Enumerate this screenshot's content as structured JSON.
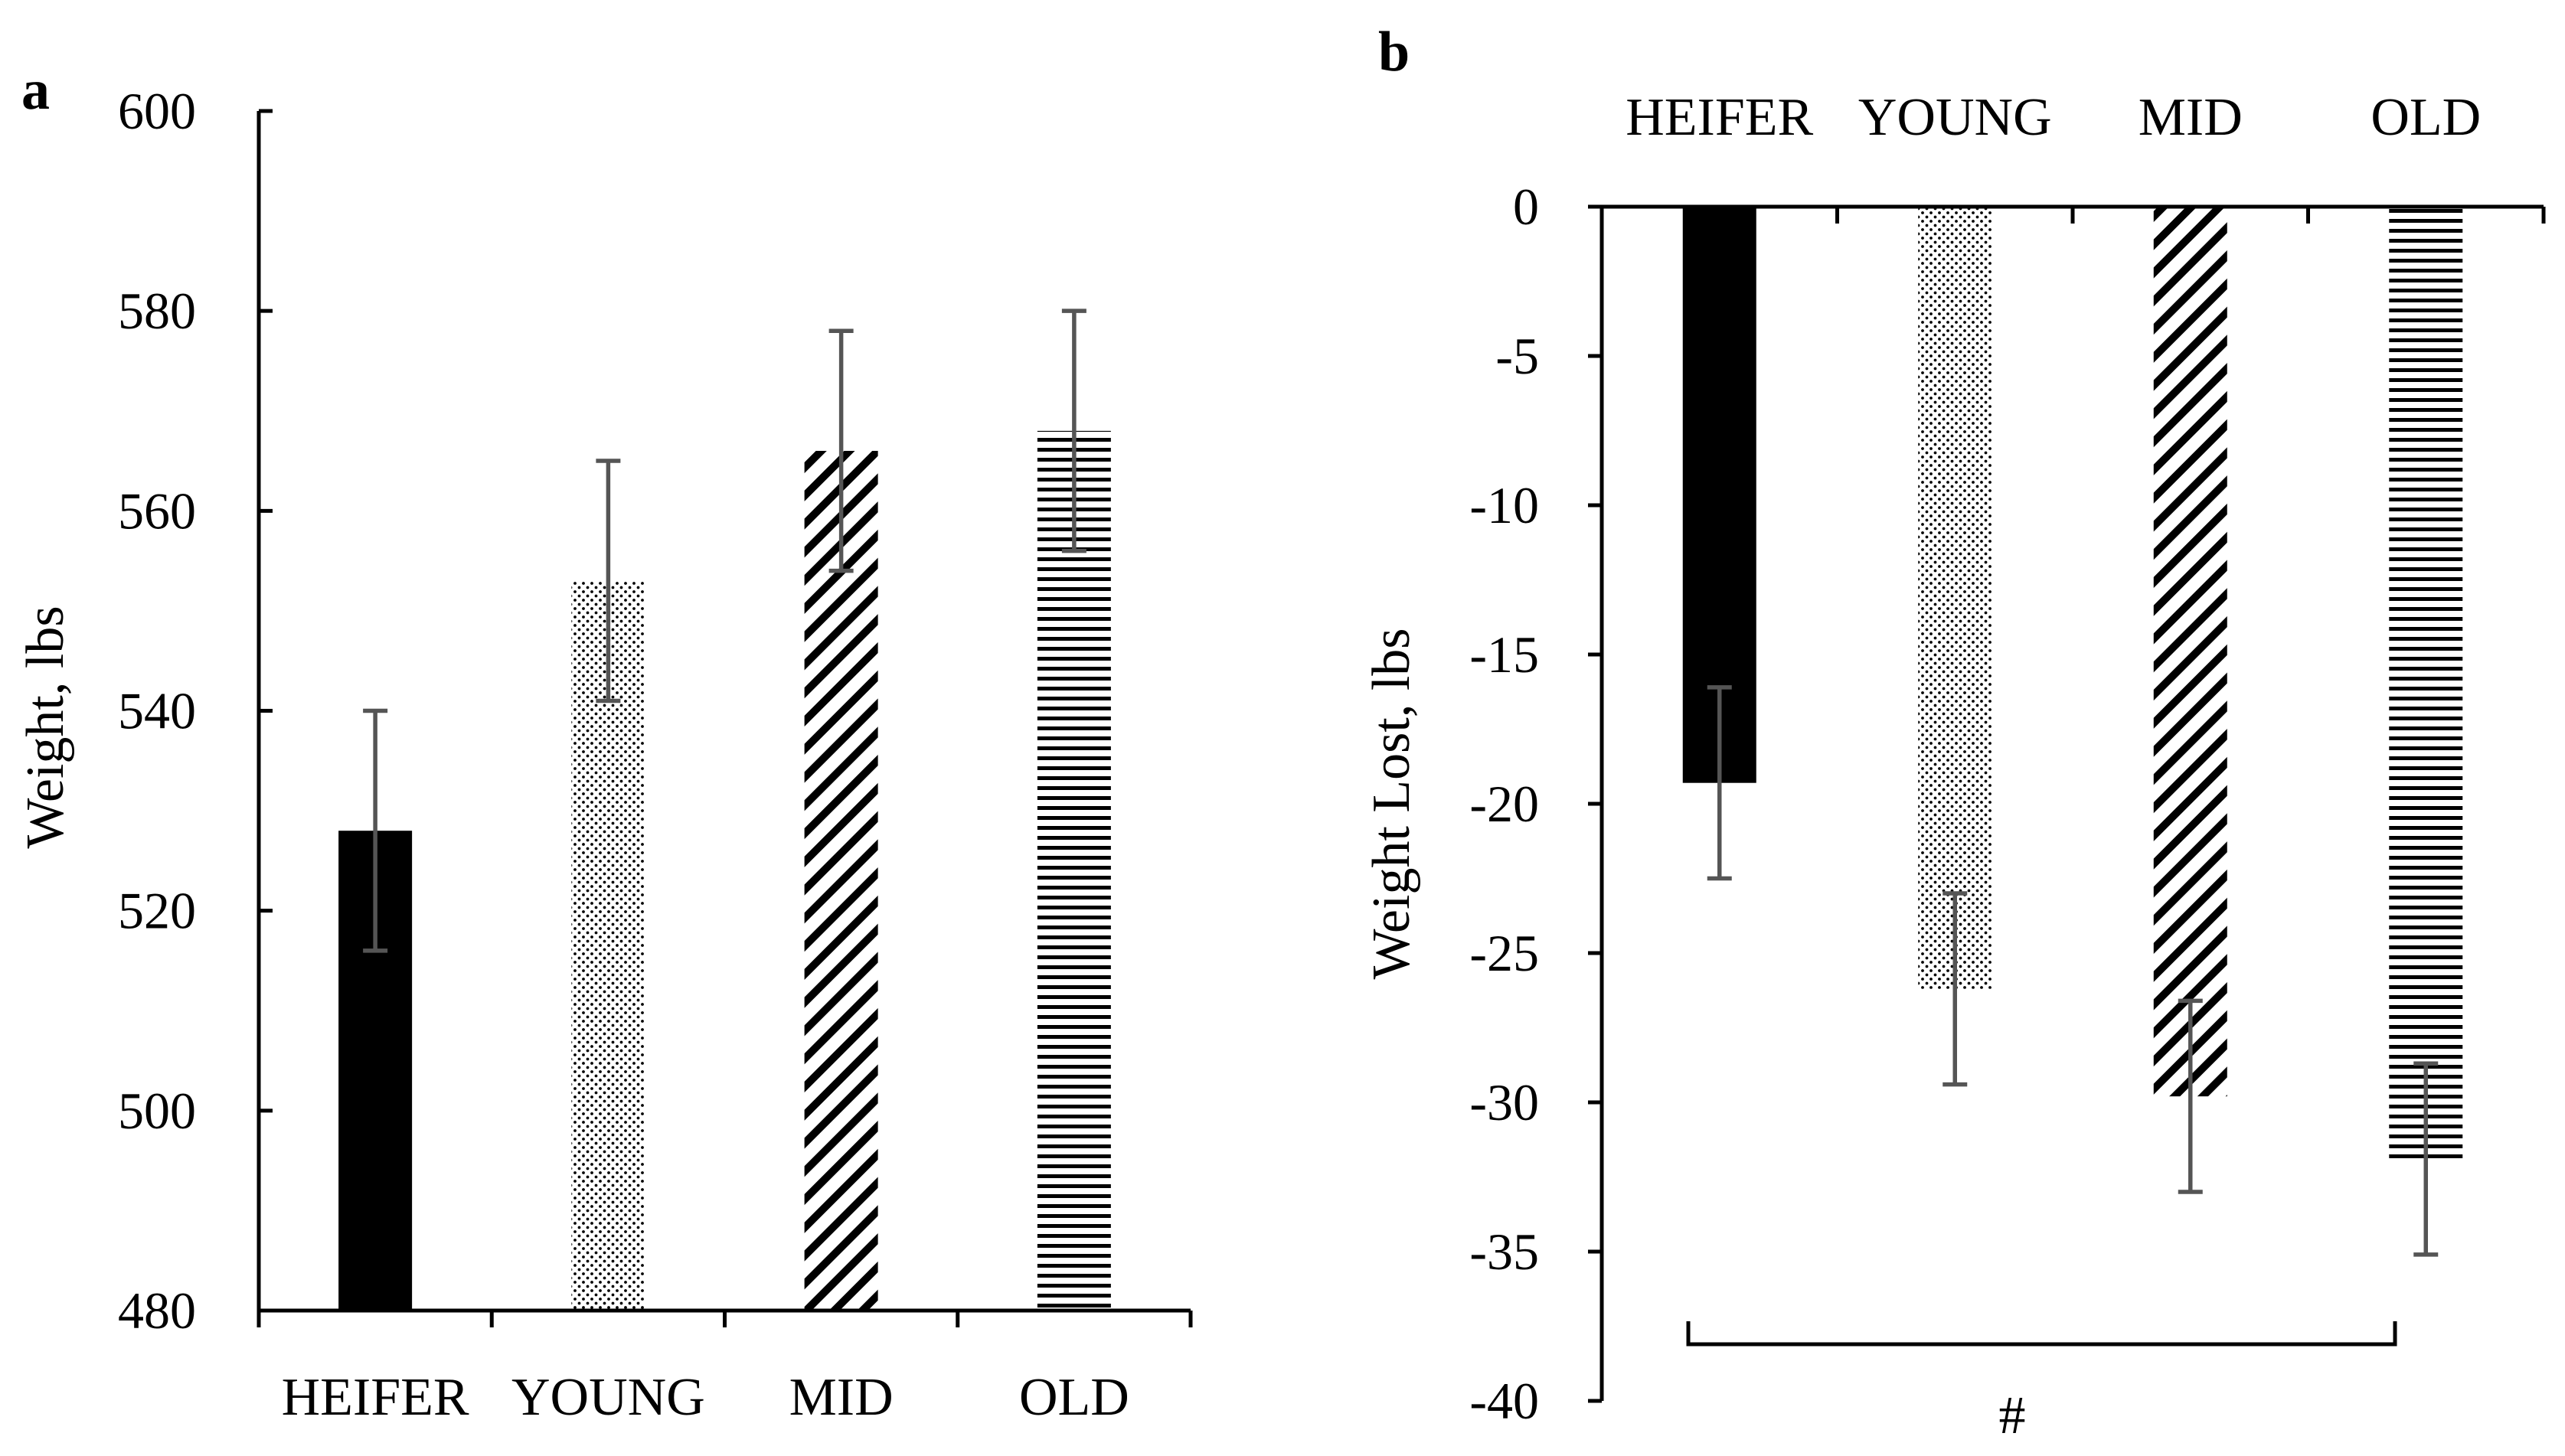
{
  "chart_data": [
    {
      "panel": "a",
      "type": "bar",
      "categories": [
        "HEIFER",
        "YOUNG",
        "MID",
        "OLD"
      ],
      "series": [
        {
          "name": "Weight",
          "values": [
            528,
            553,
            566,
            568
          ],
          "errors": [
            12,
            12,
            12,
            12
          ]
        }
      ],
      "patterns": [
        "solid",
        "dots",
        "diagonal",
        "horizontal"
      ],
      "ylabel": "Weight, lbs",
      "ylim": [
        480,
        600
      ],
      "yticks": [
        480,
        500,
        520,
        540,
        560,
        580,
        600
      ],
      "ytick_labels": [
        "480",
        "500",
        "520",
        "540",
        "560",
        "580",
        "600"
      ]
    },
    {
      "panel": "b",
      "type": "bar",
      "categories": [
        "HEIFER",
        "YOUNG",
        "MID",
        "OLD"
      ],
      "series": [
        {
          "name": "Weight Lost",
          "values": [
            -19.3,
            -26.2,
            -29.8,
            -31.9
          ],
          "errors": [
            3.2,
            3.2,
            3.2,
            3.2
          ]
        }
      ],
      "patterns": [
        "solid",
        "dots",
        "diagonal",
        "horizontal"
      ],
      "ylabel": "Weight Lost, lbs",
      "ylim": [
        -40,
        0
      ],
      "yticks": [
        0,
        -5,
        -10,
        -15,
        -20,
        -25,
        -30,
        -35,
        -40
      ],
      "ytick_labels": [
        "0",
        "-5",
        "-10",
        "-15",
        "-20",
        "-25",
        "-30",
        "-35",
        "-40"
      ],
      "annotation": "#"
    }
  ],
  "colors": {
    "bar": "#000000",
    "error_bar": "#555555",
    "axis": "#000000"
  }
}
